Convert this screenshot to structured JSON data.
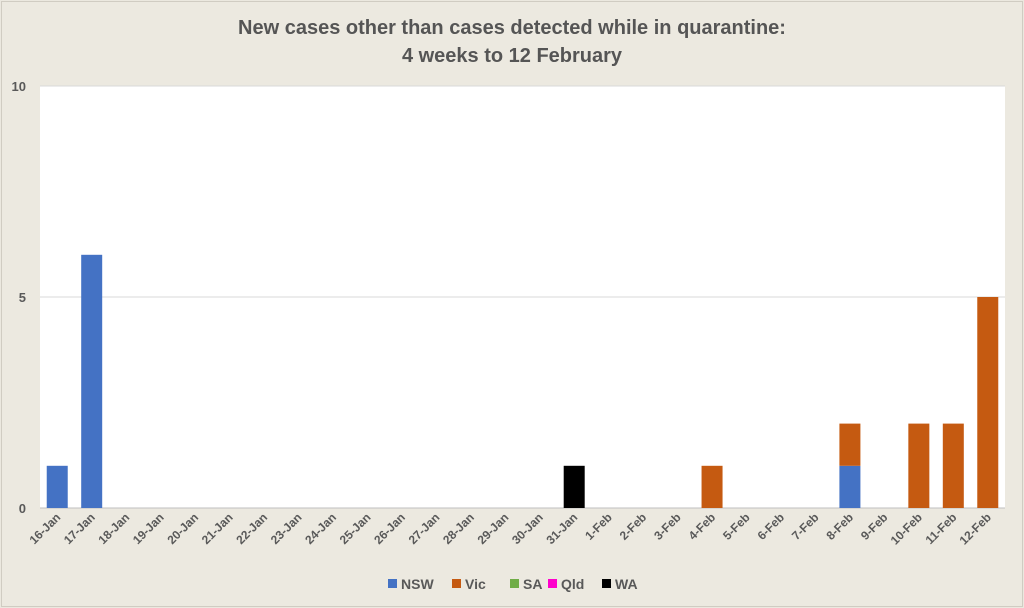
{
  "chart_data": {
    "type": "bar",
    "stacked": true,
    "title": "New cases other than cases detected while in quarantine:",
    "subtitle": "4 weeks to 12 February",
    "xlabel": "",
    "ylabel": "",
    "ylim": [
      0,
      10
    ],
    "yticks": [
      0,
      5,
      10
    ],
    "grid": true,
    "legend": "bottom",
    "categories": [
      "16-Jan",
      "17-Jan",
      "18-Jan",
      "19-Jan",
      "20-Jan",
      "21-Jan",
      "22-Jan",
      "23-Jan",
      "24-Jan",
      "25-Jan",
      "26-Jan",
      "27-Jan",
      "28-Jan",
      "29-Jan",
      "30-Jan",
      "31-Jan",
      "1-Feb",
      "2-Feb",
      "3-Feb",
      "4-Feb",
      "5-Feb",
      "6-Feb",
      "7-Feb",
      "8-Feb",
      "9-Feb",
      "10-Feb",
      "11-Feb",
      "12-Feb"
    ],
    "series": [
      {
        "name": "NSW",
        "color": "#4472c4",
        "values": [
          1,
          6,
          0,
          0,
          0,
          0,
          0,
          0,
          0,
          0,
          0,
          0,
          0,
          0,
          0,
          0,
          0,
          0,
          0,
          0,
          0,
          0,
          0,
          1,
          0,
          0,
          0,
          0
        ]
      },
      {
        "name": "Vic",
        "color": "#c55a11",
        "values": [
          0,
          0,
          0,
          0,
          0,
          0,
          0,
          0,
          0,
          0,
          0,
          0,
          0,
          0,
          0,
          0,
          0,
          0,
          0,
          1,
          0,
          0,
          0,
          1,
          0,
          2,
          2,
          5
        ]
      },
      {
        "name": "SA",
        "color": "#70ad47",
        "values": [
          0,
          0,
          0,
          0,
          0,
          0,
          0,
          0,
          0,
          0,
          0,
          0,
          0,
          0,
          0,
          0,
          0,
          0,
          0,
          0,
          0,
          0,
          0,
          0,
          0,
          0,
          0,
          0
        ]
      },
      {
        "name": "Qld",
        "color": "#ff00cc",
        "values": [
          0,
          0,
          0,
          0,
          0,
          0,
          0,
          0,
          0,
          0,
          0,
          0,
          0,
          0,
          0,
          0,
          0,
          0,
          0,
          0,
          0,
          0,
          0,
          0,
          0,
          0,
          0,
          0
        ]
      },
      {
        "name": "WA",
        "color": "#000000",
        "values": [
          0,
          0,
          0,
          0,
          0,
          0,
          0,
          0,
          0,
          0,
          0,
          0,
          0,
          0,
          0,
          1,
          0,
          0,
          0,
          0,
          0,
          0,
          0,
          0,
          0,
          0,
          0,
          0
        ]
      }
    ]
  }
}
